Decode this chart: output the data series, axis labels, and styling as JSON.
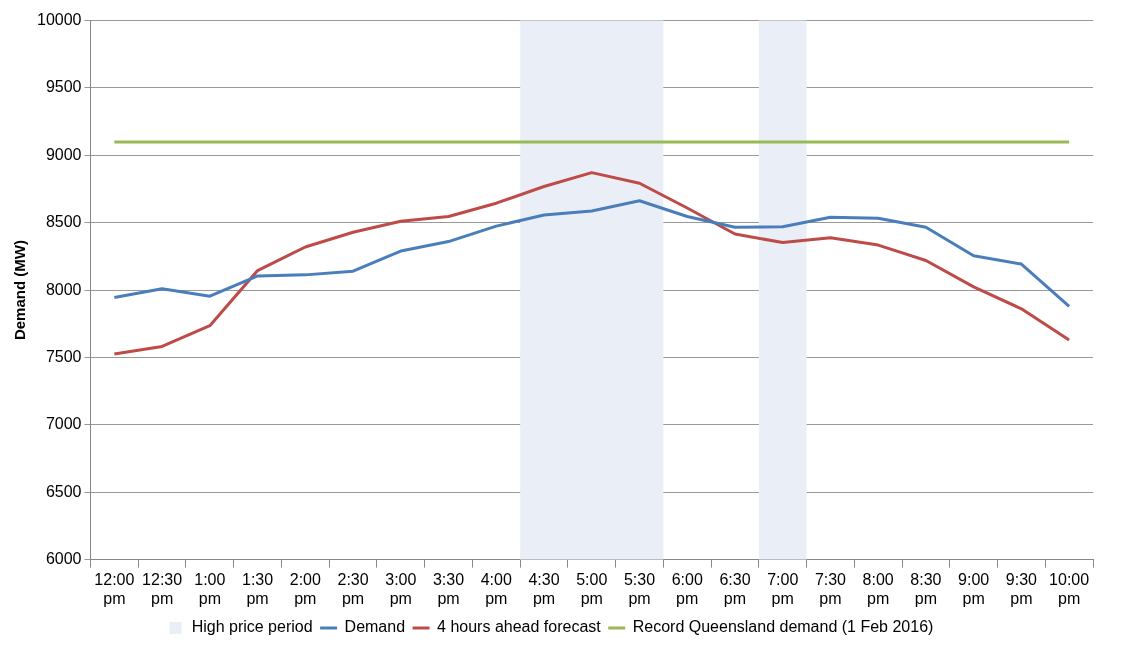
{
  "chart_data": {
    "type": "line",
    "ylabel": "Demand (MW)",
    "categories": [
      "12:00 pm",
      "12:30 pm",
      "1:00 pm",
      "1:30 pm",
      "2:00 pm",
      "2:30 pm",
      "3:00 pm",
      "3:30 pm",
      "4:00 pm",
      "4:30 pm",
      "5:00 pm",
      "5:30 pm",
      "6:00 pm",
      "6:30 pm",
      "7:00 pm",
      "7:30 pm",
      "8:00 pm",
      "8:30 pm",
      "9:00 pm",
      "9:30 pm",
      "10:00 pm"
    ],
    "series": [
      {
        "name": "Demand",
        "color": "#4a7ebb",
        "values": [
          7945,
          8010,
          7955,
          8105,
          8113,
          8140,
          8290,
          8360,
          8475,
          8557,
          8587,
          8663,
          8546,
          8467,
          8470,
          8541,
          8533,
          8467,
          8255,
          8193,
          7880
        ]
      },
      {
        "name": "4 hours ahead forecast",
        "color": "#be4b48",
        "values": [
          7526,
          7582,
          7736,
          8145,
          8320,
          8429,
          8511,
          8546,
          8645,
          8769,
          8872,
          8793,
          8609,
          8416,
          8353,
          8389,
          8334,
          8220,
          8024,
          7861,
          7630
        ]
      },
      {
        "name": "Record Queensland demand (1 Feb 2016)",
        "color": "#98b954",
        "values": [
          9100,
          9100,
          9100,
          9100,
          9100,
          9100,
          9100,
          9100,
          9100,
          9100,
          9100,
          9100,
          9100,
          9100,
          9100,
          9100,
          9100,
          9100,
          9100,
          9100,
          9100
        ]
      }
    ],
    "bands": [
      {
        "axis": "x",
        "from": "4:30 pm",
        "to": "5:30 pm",
        "label": "High price period",
        "color": "#eaeff7"
      },
      {
        "axis": "x",
        "from": "7:00 pm",
        "to": "7:00 pm",
        "color": "#eaeff7"
      }
    ],
    "ylim": [
      6000,
      10000
    ],
    "yticks": [
      6000,
      6500,
      7000,
      7500,
      8000,
      8500,
      9000,
      9500,
      10000
    ],
    "grid": "y",
    "legend": "bottom",
    "marker": "none",
    "line_style": "solid"
  }
}
